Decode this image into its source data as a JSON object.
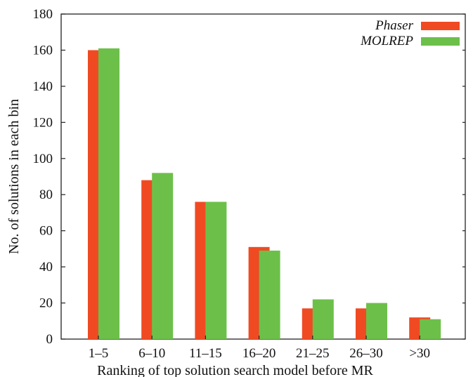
{
  "chart_data": {
    "type": "bar",
    "categories": [
      "1–5",
      "6–10",
      "11–15",
      "16–20",
      "21–25",
      "26–30",
      ">30"
    ],
    "series": [
      {
        "name": "Phaser",
        "values": [
          160,
          88,
          76,
          51,
          17,
          17,
          12
        ],
        "color": "#f04a23"
      },
      {
        "name": "MOLREP",
        "values": [
          161,
          92,
          76,
          49,
          22,
          20,
          11
        ],
        "color": "#6cc04a"
      }
    ],
    "xlabel": "Ranking of top solution search model before MR",
    "ylabel": "No. of solutions in each bin",
    "ylim": [
      0,
      180
    ],
    "yticks": [
      0,
      20,
      40,
      60,
      80,
      100,
      120,
      140,
      160,
      180
    ],
    "grid": false,
    "legend_position": "top-right"
  }
}
